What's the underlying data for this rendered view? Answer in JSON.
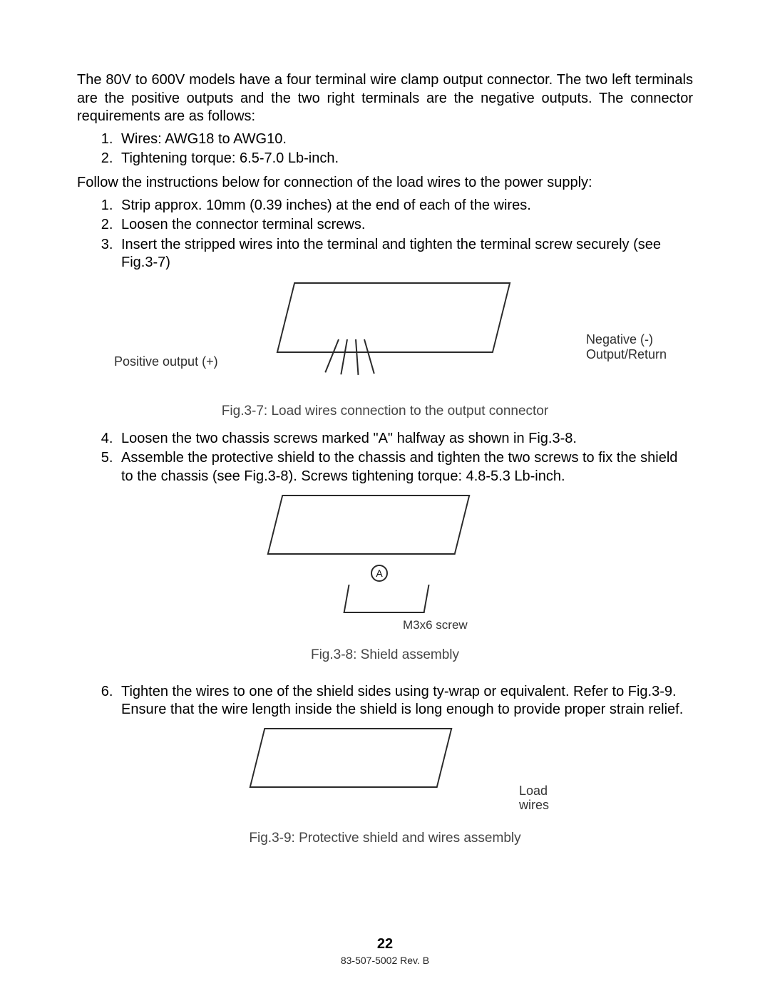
{
  "intro_paragraph": "The 80V to 600V models have a four terminal wire clamp output connector. The two left terminals are the positive outputs and the two right terminals are the negative outputs. The connector requirements are as follows:",
  "req_list": [
    "Wires: AWG18 to AWG10.",
    "Tightening torque: 6.5-7.0 Lb-inch."
  ],
  "follow_paragraph": "Follow the instructions below for connection of the load wires to the power supply:",
  "steps_1_3": [
    "Strip approx. 10mm (0.39 inches) at the end of each of the wires.",
    "Loosen the connector terminal screws.",
    "Insert the stripped wires into the terminal and tighten the terminal screw securely (see Fig.3-7)"
  ],
  "fig37": {
    "label_positive": "Positive output (+)",
    "label_negative_line1": "Negative (-)",
    "label_negative_line2": "Output/Return",
    "caption": "Fig.3-7: Load wires connection to the output connector"
  },
  "steps_4_5": [
    "Loosen the two chassis screws marked \"A\" halfway as shown in Fig.3-8.",
    "Assemble the protective shield to the chassis and tighten the two screws to fix the shield to the chassis (see Fig.3-8). Screws tightening torque: 4.8-5.3 Lb-inch."
  ],
  "fig38": {
    "marker_a": "A",
    "screw_label": "M3x6 screw",
    "caption": "Fig.3-8: Shield assembly"
  },
  "step_6": [
    "Tighten the wires to one of the shield sides using ty-wrap or equivalent. Refer to Fig.3-9. Ensure that  the wire length inside the shield is long enough to provide proper strain relief."
  ],
  "fig39": {
    "load_line1": "Load",
    "load_line2": "wires",
    "caption": "Fig.3-9: Protective shield and wires assembly"
  },
  "page_number": "22",
  "doc_rev": "83-507-5002 Rev. B"
}
